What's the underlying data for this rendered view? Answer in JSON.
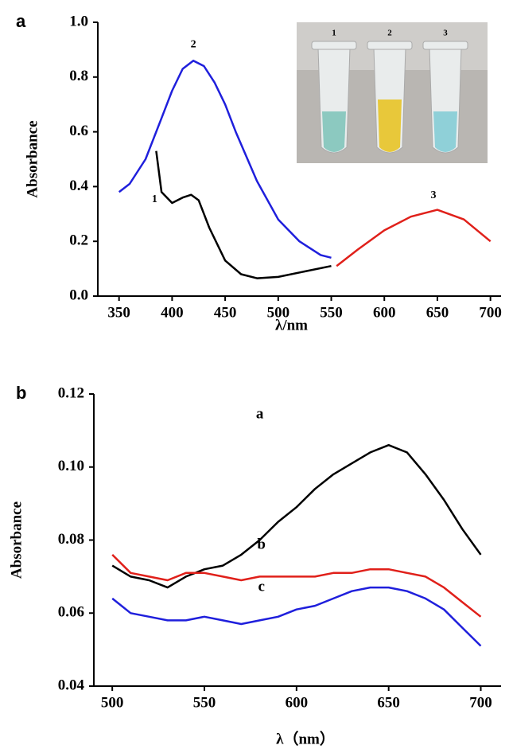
{
  "chart_data": [
    {
      "type": "line",
      "panel_label": "a",
      "x_label": "λ/nm",
      "y_label": "Absorbance",
      "xlim": [
        330,
        710
      ],
      "ylim": [
        0,
        1
      ],
      "xticks": [
        350,
        400,
        450,
        500,
        550,
        600,
        650,
        700
      ],
      "yticks": [
        {
          "value": 0,
          "label": "0.0"
        },
        0.2,
        0.4,
        0.6,
        0.8,
        {
          "value": 1,
          "label": "1.0"
        }
      ],
      "series": [
        {
          "name": "1",
          "color": "#000000",
          "x": [
            385,
            390,
            400,
            410,
            418,
            425,
            435,
            450,
            465,
            480,
            500,
            525,
            550
          ],
          "values": [
            0.53,
            0.38,
            0.34,
            0.36,
            0.37,
            0.35,
            0.25,
            0.13,
            0.08,
            0.065,
            0.07,
            0.09,
            0.11
          ]
        },
        {
          "name": "2",
          "color": "#1f1fdc",
          "x": [
            350,
            360,
            375,
            390,
            400,
            410,
            420,
            430,
            440,
            450,
            460,
            480,
            500,
            520,
            540,
            550
          ],
          "values": [
            0.38,
            0.41,
            0.5,
            0.65,
            0.75,
            0.83,
            0.86,
            0.84,
            0.78,
            0.7,
            0.6,
            0.42,
            0.28,
            0.2,
            0.15,
            0.14
          ]
        },
        {
          "name": "3",
          "color": "#e0201a",
          "x": [
            555,
            575,
            600,
            625,
            650,
            675,
            700
          ],
          "values": [
            0.11,
            0.17,
            0.24,
            0.29,
            0.315,
            0.28,
            0.2
          ]
        }
      ],
      "inset": {
        "labels": [
          "1",
          "2",
          "3"
        ]
      }
    },
    {
      "type": "line",
      "panel_label": "b",
      "x_label": "λ（nm）",
      "y_label": "Absorbance",
      "xlim": [
        490,
        711
      ],
      "ylim": [
        0.04,
        0.12
      ],
      "xticks": [
        500,
        550,
        600,
        650,
        700
      ],
      "yticks": [
        0.04,
        0.06,
        0.08,
        {
          "value": 0.1,
          "label": "0.10"
        },
        0.12
      ],
      "series": [
        {
          "name": "a",
          "color": "#000000",
          "x": [
            500,
            510,
            520,
            530,
            540,
            550,
            560,
            570,
            580,
            590,
            600,
            610,
            620,
            630,
            640,
            650,
            660,
            670,
            680,
            690,
            700
          ],
          "values": [
            0.073,
            0.07,
            0.069,
            0.067,
            0.07,
            0.072,
            0.073,
            0.076,
            0.08,
            0.085,
            0.089,
            0.094,
            0.098,
            0.101,
            0.104,
            0.106,
            0.104,
            0.098,
            0.091,
            0.083,
            0.076
          ]
        },
        {
          "name": "b",
          "color": "#e0201a",
          "x": [
            500,
            510,
            520,
            530,
            540,
            550,
            560,
            570,
            580,
            590,
            600,
            610,
            620,
            630,
            640,
            650,
            660,
            670,
            680,
            690,
            700
          ],
          "values": [
            0.076,
            0.071,
            0.07,
            0.069,
            0.071,
            0.071,
            0.07,
            0.069,
            0.07,
            0.07,
            0.07,
            0.07,
            0.071,
            0.071,
            0.072,
            0.072,
            0.071,
            0.07,
            0.067,
            0.063,
            0.059
          ]
        },
        {
          "name": "c",
          "color": "#1f1fdc",
          "x": [
            500,
            510,
            520,
            530,
            540,
            550,
            560,
            570,
            580,
            590,
            600,
            610,
            620,
            630,
            640,
            650,
            660,
            670,
            680,
            690,
            700
          ],
          "values": [
            0.064,
            0.06,
            0.059,
            0.058,
            0.058,
            0.059,
            0.058,
            0.057,
            0.058,
            0.059,
            0.061,
            0.062,
            0.064,
            0.066,
            0.067,
            0.067,
            0.066,
            0.064,
            0.061,
            0.056,
            0.051
          ]
        }
      ]
    }
  ]
}
